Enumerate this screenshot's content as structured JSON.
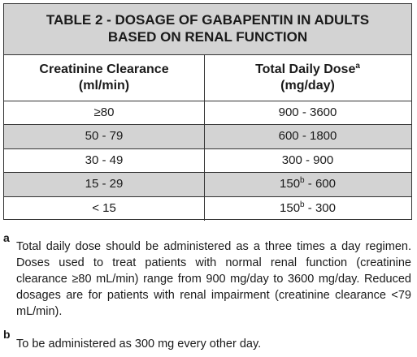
{
  "table": {
    "title_line1": "TABLE 2 - DOSAGE OF GABAPENTIN IN ADULTS",
    "title_line2": "BASED ON RENAL FUNCTION",
    "headers": {
      "col1_line1": "Creatinine Clearance",
      "col1_line2": "(ml/min)",
      "col2_line1": "Total Daily Dose",
      "col2_sup": "a",
      "col2_line2": "(mg/day)"
    },
    "rows": [
      {
        "clearance": "≥80",
        "dose_pre": "900 - 3600",
        "dose_sup": "",
        "dose_post": ""
      },
      {
        "clearance": "50 - 79",
        "dose_pre": "600 - 1800",
        "dose_sup": "",
        "dose_post": ""
      },
      {
        "clearance": "30 - 49",
        "dose_pre": "300 - 900",
        "dose_sup": "",
        "dose_post": ""
      },
      {
        "clearance": "15 - 29",
        "dose_pre": "150",
        "dose_sup": "b",
        "dose_post": " - 600"
      },
      {
        "clearance": "< 15",
        "dose_pre": "150",
        "dose_sup": "b",
        "dose_post": " - 300"
      }
    ]
  },
  "footnotes": [
    {
      "mark": "a",
      "text": "Total daily dose should be administered as a three times a day regimen. Doses used to treat patients with normal renal function (creatinine clearance ≥80 mL/min) range from 900 mg/day to 3600 mg/day. Reduced dosages are for patients with renal impairment (creatinine clearance <79 mL/min)."
    },
    {
      "mark": "b",
      "text": "To be administered as 300 mg every other day."
    }
  ]
}
